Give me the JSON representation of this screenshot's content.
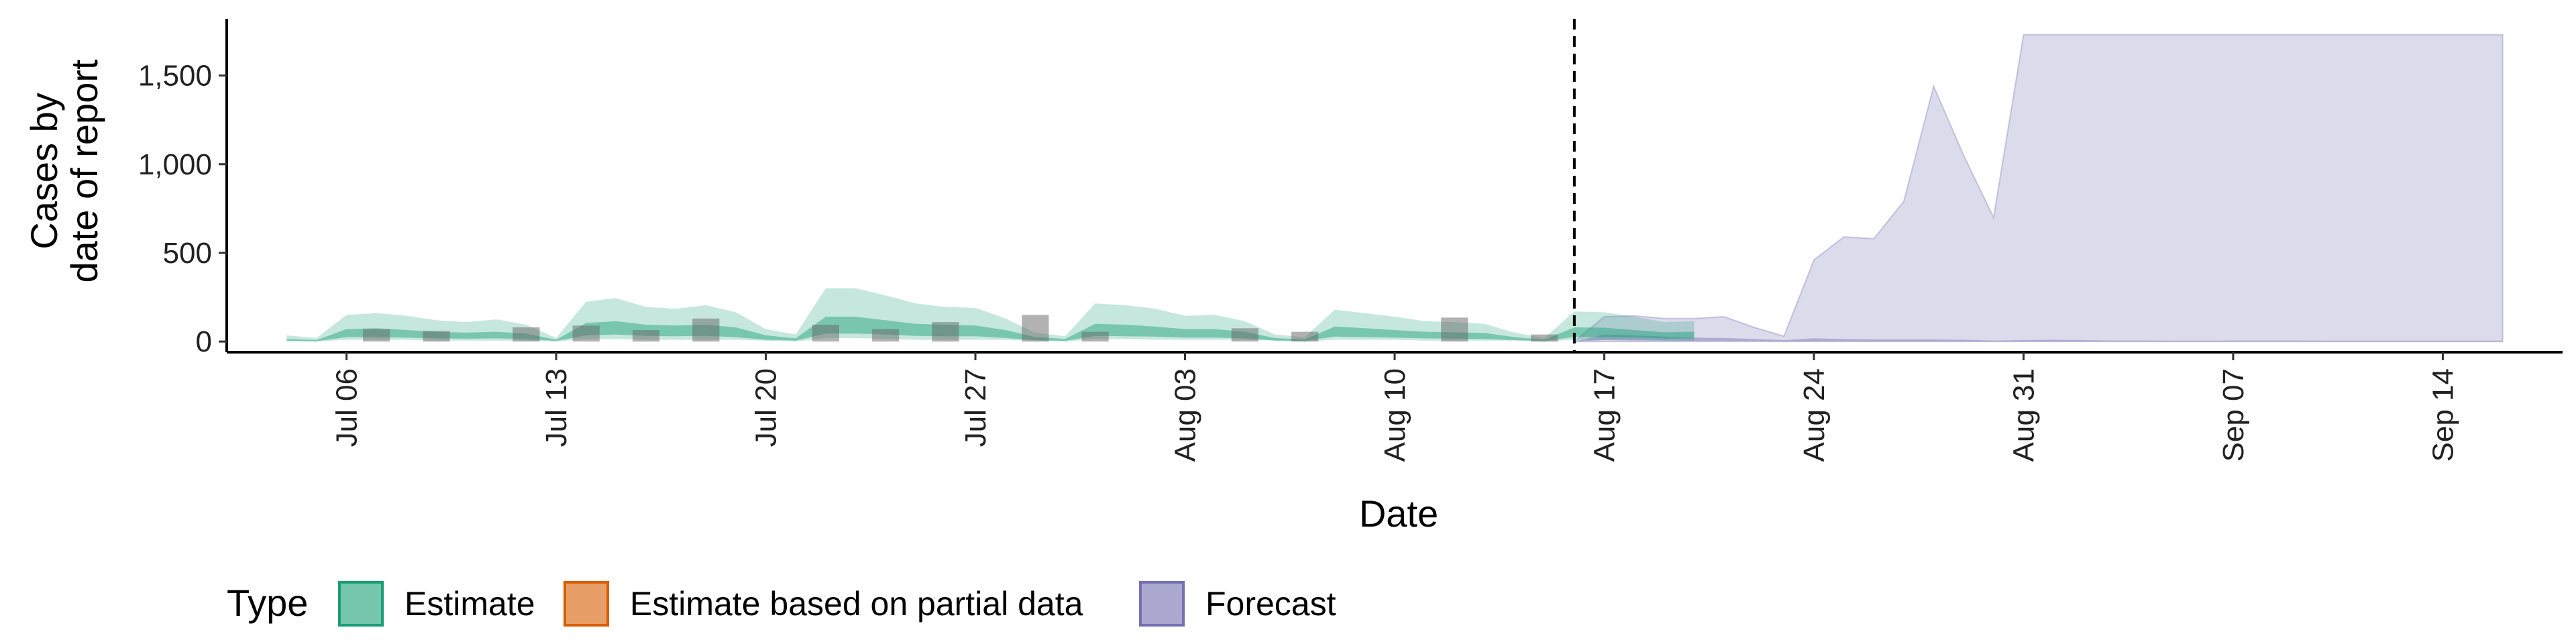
{
  "chart_data": {
    "type": "area",
    "title": "",
    "xlabel": "Date",
    "ylabel_line1": "Cases by",
    "ylabel_line2": "date of report",
    "x_start": "2020-07-02",
    "x_end": "2020-09-18",
    "ylim": [
      -60,
      1820
    ],
    "y_ticks": [
      {
        "value": 0,
        "label": "0"
      },
      {
        "value": 500,
        "label": "500"
      },
      {
        "value": 1000,
        "label": "1,000"
      },
      {
        "value": 1500,
        "label": "1,500"
      }
    ],
    "x_ticks": [
      {
        "date": "2020-07-06",
        "label": "Jul 06"
      },
      {
        "date": "2020-07-13",
        "label": "Jul 13"
      },
      {
        "date": "2020-07-20",
        "label": "Jul 20"
      },
      {
        "date": "2020-07-27",
        "label": "Jul 27"
      },
      {
        "date": "2020-08-03",
        "label": "Aug 03"
      },
      {
        "date": "2020-08-10",
        "label": "Aug 10"
      },
      {
        "date": "2020-08-17",
        "label": "Aug 17"
      },
      {
        "date": "2020-08-24",
        "label": "Aug 24"
      },
      {
        "date": "2020-08-31",
        "label": "Aug 31"
      },
      {
        "date": "2020-09-07",
        "label": "Sep 07"
      },
      {
        "date": "2020-09-14",
        "label": "Sep 14"
      }
    ],
    "forecast_start_line": "2020-08-16",
    "colors": {
      "estimate": "#1b9e77",
      "partial": "#d95f02",
      "forecast": "#7570b3",
      "observed": "#666666"
    },
    "estimate": {
      "start_date": "2020-07-04",
      "outer_upper": [
        35,
        20,
        150,
        160,
        145,
        120,
        110,
        125,
        95,
        20,
        225,
        245,
        195,
        185,
        205,
        165,
        70,
        40,
        300,
        300,
        260,
        215,
        195,
        190,
        130,
        50,
        30,
        215,
        205,
        185,
        145,
        150,
        115,
        40,
        25,
        180,
        160,
        140,
        115,
        110,
        100,
        50,
        20,
        170,
        165,
        140,
        110,
        115
      ],
      "outer_lower": [
        0,
        0,
        10,
        10,
        10,
        5,
        5,
        5,
        5,
        0,
        15,
        15,
        10,
        10,
        10,
        10,
        5,
        0,
        20,
        20,
        15,
        10,
        10,
        10,
        10,
        5,
        0,
        15,
        15,
        10,
        10,
        10,
        10,
        5,
        0,
        10,
        10,
        10,
        5,
        5,
        5,
        5,
        0,
        10,
        10,
        10,
        5,
        5
      ],
      "inner_upper": [
        15,
        8,
        70,
        75,
        65,
        55,
        50,
        55,
        45,
        10,
        105,
        115,
        95,
        90,
        95,
        80,
        35,
        18,
        140,
        140,
        120,
        100,
        95,
        90,
        65,
        25,
        15,
        100,
        95,
        85,
        70,
        70,
        55,
        20,
        12,
        85,
        75,
        65,
        55,
        52,
        48,
        25,
        10,
        80,
        78,
        65,
        52,
        55
      ],
      "inner_lower": [
        5,
        2,
        25,
        25,
        22,
        18,
        16,
        18,
        14,
        3,
        35,
        40,
        32,
        30,
        32,
        25,
        10,
        5,
        45,
        45,
        40,
        32,
        30,
        30,
        20,
        8,
        4,
        32,
        30,
        28,
        22,
        22,
        18,
        6,
        3,
        28,
        25,
        22,
        18,
        16,
        15,
        8,
        3,
        26,
        25,
        22,
        17,
        18
      ]
    },
    "observed_cases": {
      "dates": [
        "2020-07-07",
        "2020-07-09",
        "2020-07-12",
        "2020-07-14",
        "2020-07-16",
        "2020-07-18",
        "2020-07-22",
        "2020-07-24",
        "2020-07-26",
        "2020-07-29",
        "2020-07-31",
        "2020-08-05",
        "2020-08-07",
        "2020-08-12",
        "2020-08-15"
      ],
      "values": [
        70,
        60,
        80,
        90,
        65,
        130,
        95,
        70,
        110,
        150,
        55,
        75,
        55,
        135,
        40
      ]
    },
    "forecast": {
      "start_date": "2020-08-16",
      "outer_upper": [
        0,
        140,
        145,
        130,
        130,
        140,
        80,
        30,
        460,
        590,
        580,
        790,
        1440,
        1050,
        700,
        1730,
        1730,
        1730,
        1730,
        1730,
        1730,
        1730,
        1730,
        1730,
        1730,
        1730,
        1730,
        1730,
        1730,
        1730,
        1730,
        1730
      ],
      "outer_lower": [
        0,
        0,
        0,
        0,
        0,
        0,
        0,
        0,
        0,
        0,
        0,
        0,
        0,
        0,
        0,
        0,
        0,
        0,
        0,
        0,
        0,
        0,
        0,
        0,
        0,
        0,
        0,
        0,
        0,
        0,
        0,
        0
      ],
      "inner_upper": [
        0,
        40,
        35,
        28,
        22,
        20,
        15,
        8,
        18,
        14,
        12,
        12,
        12,
        10,
        6,
        8,
        10,
        8,
        6,
        6,
        5,
        5,
        6,
        6,
        6,
        5,
        5,
        5,
        5,
        5,
        5,
        5
      ],
      "inner_lower": [
        0,
        8,
        6,
        5,
        4,
        4,
        3,
        1,
        2,
        2,
        1,
        1,
        1,
        1,
        1,
        1,
        1,
        1,
        1,
        1,
        1,
        1,
        1,
        1,
        1,
        1,
        1,
        1,
        1,
        1,
        1,
        1
      ]
    }
  },
  "legend": {
    "title": "Type",
    "items": [
      {
        "label": "Estimate",
        "fill": "#1b9e77",
        "stroke": "#1b9e77"
      },
      {
        "label": "Estimate based on partial data",
        "fill": "#d95f02",
        "stroke": "#d95f02"
      },
      {
        "label": "Forecast",
        "fill": "#7570b3",
        "stroke": "#7570b3"
      }
    ]
  }
}
